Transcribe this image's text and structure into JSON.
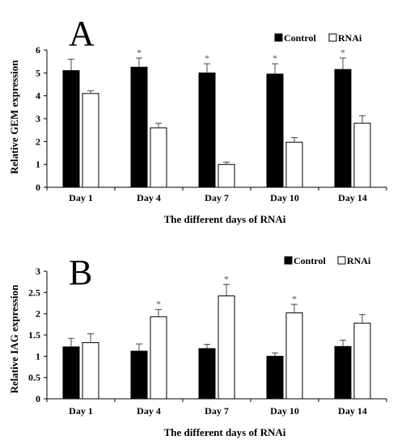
{
  "chart_data": [
    {
      "type": "bar",
      "panel_label": "A",
      "categories": [
        "Day 1",
        "Day 4",
        "Day 7",
        "Day 10",
        "Day 14"
      ],
      "series": [
        {
          "name": "Control",
          "values": [
            5.1,
            5.25,
            5.0,
            4.95,
            5.15
          ],
          "errors": [
            0.5,
            0.4,
            0.4,
            0.45,
            0.5
          ],
          "color": "#000000"
        },
        {
          "name": "RNAi",
          "values": [
            4.1,
            2.6,
            1.0,
            1.97,
            2.8
          ],
          "errors": [
            0.12,
            0.2,
            0.1,
            0.2,
            0.33
          ],
          "color": "#ffffff"
        }
      ],
      "significance": [
        "",
        "*",
        "*",
        "*",
        "*"
      ],
      "significance_series": "Control",
      "xlabel": "The different days of RNAi",
      "ylabel": "Relative GEM expression",
      "ylim": [
        0,
        6
      ],
      "yticks": [
        "0",
        "1",
        "2",
        "3",
        "4",
        "5",
        "6"
      ],
      "legend_position": "top-right",
      "grid": false
    },
    {
      "type": "bar",
      "panel_label": "B",
      "categories": [
        "Day 1",
        "Day 4",
        "Day 7",
        "Day 10",
        "Day 14"
      ],
      "series": [
        {
          "name": "Control",
          "values": [
            1.22,
            1.12,
            1.18,
            1.0,
            1.23
          ],
          "errors": [
            0.2,
            0.17,
            0.1,
            0.08,
            0.15
          ],
          "color": "#000000"
        },
        {
          "name": "RNAi",
          "values": [
            1.32,
            1.93,
            2.42,
            2.02,
            1.78
          ],
          "errors": [
            0.21,
            0.17,
            0.27,
            0.2,
            0.2
          ],
          "color": "#ffffff"
        }
      ],
      "significance": [
        "",
        "*",
        "*",
        "*",
        ""
      ],
      "significance_series": "RNAi",
      "xlabel": "The different days of RNAi",
      "ylabel": "Relative IAG expression",
      "ylim": [
        0,
        3
      ],
      "yticks": [
        "0",
        "0.5",
        "1",
        "1.5",
        "2",
        "2.5",
        "3"
      ],
      "legend_position": "top-right",
      "grid": false
    }
  ]
}
